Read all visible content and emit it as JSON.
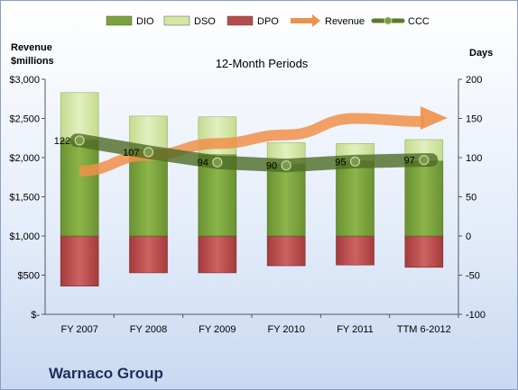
{
  "chart_data": {
    "type": "bar",
    "title": "12-Month Periods",
    "company": "Warnaco Group",
    "left_axis_title": [
      "Revenue",
      "$millions"
    ],
    "right_axis_title": "Days",
    "categories": [
      "FY 2007",
      "FY 2008",
      "FY 2009",
      "FY 2010",
      "FY 2011",
      "TTM 6-2012"
    ],
    "left_axis": {
      "range": [
        0,
        3000
      ],
      "ticks": [
        "$-",
        "$500",
        "$1,000",
        "$1,500",
        "$2,000",
        "$2,500",
        "$3,000"
      ],
      "tick_values": [
        0,
        500,
        1000,
        1500,
        2000,
        2500,
        3000
      ]
    },
    "right_axis": {
      "range": [
        -100,
        200
      ],
      "ticks": [
        "-100",
        "-50",
        "0",
        "50",
        "100",
        "150",
        "200"
      ],
      "tick_values": [
        -100,
        -50,
        0,
        50,
        100,
        150,
        200
      ]
    },
    "stacked_days": {
      "DIO": [
        123,
        110,
        104,
        92,
        96,
        96
      ],
      "DSO": [
        60,
        43,
        48,
        27,
        22,
        27
      ],
      "DPO": [
        -64,
        -47,
        -47,
        -38,
        -37,
        -40
      ]
    },
    "revenue": [
      1830,
      2030,
      2180,
      2290,
      2500,
      2460
    ],
    "ccc": [
      122,
      107,
      94,
      90,
      95,
      97
    ],
    "ccc_labels": [
      "122",
      "107",
      "94",
      "90",
      "95",
      "97"
    ],
    "legend": [
      {
        "name": "DIO",
        "color": "#7aa23d"
      },
      {
        "name": "DSO",
        "color": "#d3e6a4"
      },
      {
        "name": "DPO",
        "color": "#b84a4a"
      },
      {
        "name": "Revenue",
        "color": "#f0904a"
      },
      {
        "name": "CCC",
        "color": "#5a7a2e"
      }
    ],
    "grid": false,
    "legend_position": "top"
  }
}
